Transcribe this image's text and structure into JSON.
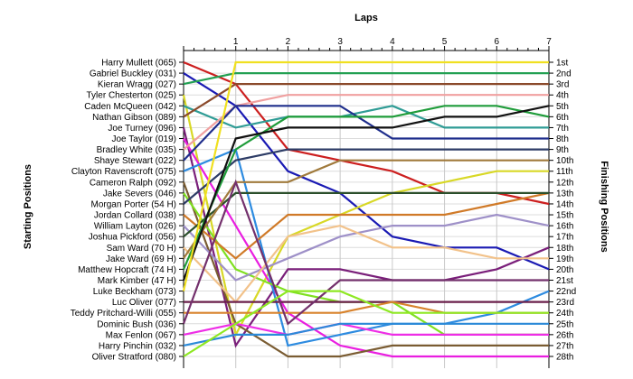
{
  "chart_data": {
    "type": "line",
    "title": "",
    "xlabel": "Laps",
    "ylabel_left": "Starting Positions",
    "ylabel_right": "Finishing Positions",
    "x": [
      0,
      1,
      2,
      3,
      4,
      5,
      6,
      7
    ],
    "x_tick_labels": [
      "1",
      "2",
      "3",
      "4",
      "5",
      "6",
      "7"
    ],
    "y_reversed": true,
    "grid": true,
    "finishing_labels": [
      "1st",
      "2nd",
      "3rd",
      "4th",
      "5th",
      "6th",
      "7th",
      "8th",
      "9th",
      "10th",
      "11th",
      "12th",
      "13th",
      "14th",
      "15th",
      "16th",
      "17th",
      "18th",
      "19th",
      "20th",
      "21st",
      "22nd",
      "23rd",
      "24th",
      "25th",
      "26th",
      "27th",
      "28th"
    ],
    "series": [
      {
        "name": "Harry Mullett (065)",
        "color": "#cc1f1f",
        "values": [
          1,
          3,
          9,
          10,
          11,
          13,
          13,
          14
        ]
      },
      {
        "name": "Gabriel Buckley (031)",
        "color": "#1a1ab3",
        "values": [
          2,
          5,
          11,
          13,
          17,
          18,
          18,
          20
        ]
      },
      {
        "name": "Kieran Wragg (027)",
        "color": "#22a052",
        "values": [
          3,
          2,
          2,
          2,
          2,
          2,
          2,
          2
        ]
      },
      {
        "name": "Tyler Chesterton (025)",
        "color": "#d8d826",
        "values": [
          4,
          26,
          17,
          15,
          13,
          12,
          11,
          11
        ]
      },
      {
        "name": "Caden McQueen (042)",
        "color": "#2f9c95",
        "values": [
          5,
          7,
          6,
          6,
          5,
          7,
          7,
          7
        ]
      },
      {
        "name": "Nathan Gibson (089)",
        "color": "#8b4a2b",
        "values": [
          6,
          3,
          3,
          3,
          3,
          3,
          3,
          3
        ]
      },
      {
        "name": "Joe Turney (096)",
        "color": "#7a1f7a",
        "values": [
          7,
          27,
          20,
          20,
          21,
          21,
          20,
          18
        ]
      },
      {
        "name": "Joe Taylor (019)",
        "color": "#e91ee0",
        "values": [
          8,
          16,
          24,
          27,
          28,
          28,
          28,
          28
        ]
      },
      {
        "name": "Bradley White (035)",
        "color": "#f0a0a0",
        "values": [
          9,
          5,
          4,
          4,
          4,
          4,
          4,
          4
        ]
      },
      {
        "name": "Shaye Stewart (022)",
        "color": "#1f2e8c",
        "values": [
          10,
          5,
          5,
          5,
          8,
          8,
          8,
          8
        ]
      },
      {
        "name": "Clayton Ravenscroft (075)",
        "color": "#2d8be0",
        "values": [
          11,
          9,
          27,
          26,
          25,
          25,
          24,
          22
        ]
      },
      {
        "name": "Cameron Ralph (092)",
        "color": "#7a5c32",
        "values": [
          12,
          25,
          28,
          28,
          27,
          27,
          27,
          27
        ]
      },
      {
        "name": "Jake Severs (046)",
        "color": "#7fe020",
        "values": [
          13,
          20,
          22,
          23,
          23,
          26,
          26,
          26
        ]
      },
      {
        "name": "Morgan Porter (54 H)",
        "color": "#2d3c66",
        "values": [
          14,
          10,
          9,
          9,
          9,
          9,
          9,
          9
        ]
      },
      {
        "name": "Jordan Collard (038)",
        "color": "#d07a28",
        "values": [
          15,
          19,
          15,
          15,
          15,
          15,
          14,
          13
        ]
      },
      {
        "name": "William Layton (026)",
        "color": "#9e90c8",
        "values": [
          16,
          21,
          19,
          17,
          16,
          16,
          15,
          16
        ]
      },
      {
        "name": "Joshua Pickford (056)",
        "color": "#2b4f2b",
        "values": [
          17,
          13,
          13,
          13,
          13,
          13,
          13,
          13
        ]
      },
      {
        "name": "Sam Ward (70 H)",
        "color": "#f2c28a",
        "values": [
          18,
          23,
          17,
          16,
          18,
          18,
          19,
          19
        ]
      },
      {
        "name": "Jake Ward (69 H)",
        "color": "#a07a3c",
        "values": [
          19,
          12,
          12,
          10,
          10,
          10,
          10,
          10
        ]
      },
      {
        "name": "Matthew Hopcraft (74 H)",
        "color": "#1f9c3a",
        "values": [
          20,
          9,
          6,
          6,
          6,
          5,
          5,
          6
        ]
      },
      {
        "name": "Mark Kimber (47 H)",
        "color": "#111111",
        "values": [
          21,
          8,
          7,
          7,
          7,
          6,
          6,
          5
        ]
      },
      {
        "name": "Luke Beckham (073)",
        "color": "#f0e020",
        "values": [
          22,
          1,
          1,
          1,
          1,
          1,
          1,
          1
        ]
      },
      {
        "name": "Luc Oliver (077)",
        "color": "#6a1f4a",
        "values": [
          23,
          23,
          23,
          23,
          23,
          23,
          23,
          23
        ]
      },
      {
        "name": "Teddy Pritchard-Willi (055)",
        "color": "#d8832c",
        "values": [
          24,
          24,
          24,
          24,
          23,
          24,
          24,
          24
        ]
      },
      {
        "name": "Dominic Bush (036)",
        "color": "#73306c",
        "values": [
          25,
          12,
          25,
          21,
          21,
          21,
          21,
          21
        ]
      },
      {
        "name": "Max Fenlon (067)",
        "color": "#ee2ee6",
        "values": [
          26,
          25,
          26,
          25,
          26,
          26,
          26,
          26
        ]
      },
      {
        "name": "Harry Pinchin (032)",
        "color": "#2b8ad8",
        "values": [
          27,
          26,
          26,
          25,
          25,
          25,
          25,
          25
        ]
      },
      {
        "name": "Oliver Stratford (080)",
        "color": "#8ee822",
        "values": [
          28,
          25,
          22,
          22,
          24,
          24,
          24,
          24
        ]
      }
    ]
  }
}
